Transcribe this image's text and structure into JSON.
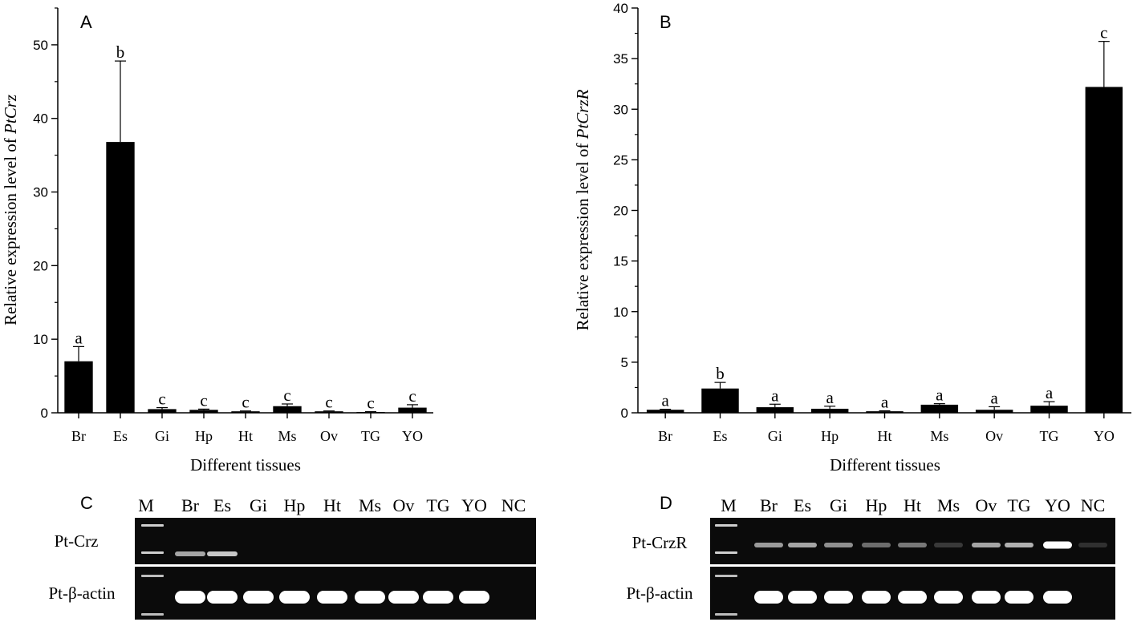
{
  "panels": {
    "A": {
      "letter": "A"
    },
    "B": {
      "letter": "B"
    },
    "C": {
      "letter": "C"
    },
    "D": {
      "letter": "D"
    }
  },
  "chart_data": [
    {
      "type": "bar",
      "panel": "A",
      "xlabel": "Different tissues",
      "ylabel_prefix": "Relative expression level of ",
      "ylabel_gene": "PtCrz",
      "categories": [
        "Br",
        "Es",
        "Gi",
        "Hp",
        "Ht",
        "Ms",
        "Ov",
        "TG",
        "YO"
      ],
      "values": [
        7.0,
        36.8,
        0.5,
        0.4,
        0.2,
        0.9,
        0.2,
        0.1,
        0.7
      ],
      "errors": [
        2.0,
        11.0,
        0.2,
        0.1,
        0.05,
        0.3,
        0.05,
        0.05,
        0.4
      ],
      "sig_letters": [
        "a",
        "b",
        "c",
        "c",
        "c",
        "c",
        "c",
        "c",
        "c"
      ],
      "ylim": [
        0,
        55
      ],
      "yticks": [
        0,
        10,
        20,
        30,
        40,
        50
      ],
      "bar_color": "#000000"
    },
    {
      "type": "bar",
      "panel": "B",
      "xlabel": "Different tissues",
      "ylabel_prefix": "Relative expression level of ",
      "ylabel_gene": "PtCrzR",
      "categories": [
        "Br",
        "Es",
        "Gi",
        "Hp",
        "Ht",
        "Ms",
        "Ov",
        "TG",
        "YO"
      ],
      "values": [
        0.3,
        2.4,
        0.55,
        0.4,
        0.15,
        0.8,
        0.3,
        0.7,
        32.2
      ],
      "errors": [
        0.05,
        0.6,
        0.3,
        0.25,
        0.05,
        0.1,
        0.3,
        0.4,
        4.5
      ],
      "sig_letters": [
        "a",
        "b",
        "a",
        "a",
        "a",
        "a",
        "a",
        "a",
        "c"
      ],
      "ylim": [
        0,
        40
      ],
      "yticks": [
        0,
        5,
        10,
        15,
        20,
        25,
        30,
        35,
        40
      ],
      "bar_color": "#000000"
    }
  ],
  "gels": {
    "C": {
      "lanes": [
        "M",
        "Br",
        "Es",
        "Gi",
        "Hp",
        "Ht",
        "Ms",
        "Ov",
        "TG",
        "YO",
        "NC"
      ],
      "rows": [
        {
          "label": "Pt-Crz",
          "intensities": [
            0.6,
            0.75,
            0,
            0,
            0,
            0,
            0,
            0,
            0,
            0
          ]
        },
        {
          "label": "Pt-β-actin",
          "intensities": [
            1,
            1,
            1,
            1,
            1,
            1,
            1,
            1,
            1,
            0
          ]
        }
      ]
    },
    "D": {
      "lanes": [
        "M",
        "Br",
        "Es",
        "Gi",
        "Hp",
        "Ht",
        "Ms",
        "Ov",
        "TG",
        "YO",
        "NC"
      ],
      "rows": [
        {
          "label": "Pt-CrzR",
          "intensities": [
            0.55,
            0.6,
            0.5,
            0.35,
            0.4,
            0.12,
            0.6,
            0.65,
            1,
            0.08
          ]
        },
        {
          "label": "Pt-β-actin",
          "intensities": [
            1,
            1,
            1,
            1,
            1,
            1,
            1,
            1,
            1,
            0
          ]
        }
      ]
    }
  }
}
